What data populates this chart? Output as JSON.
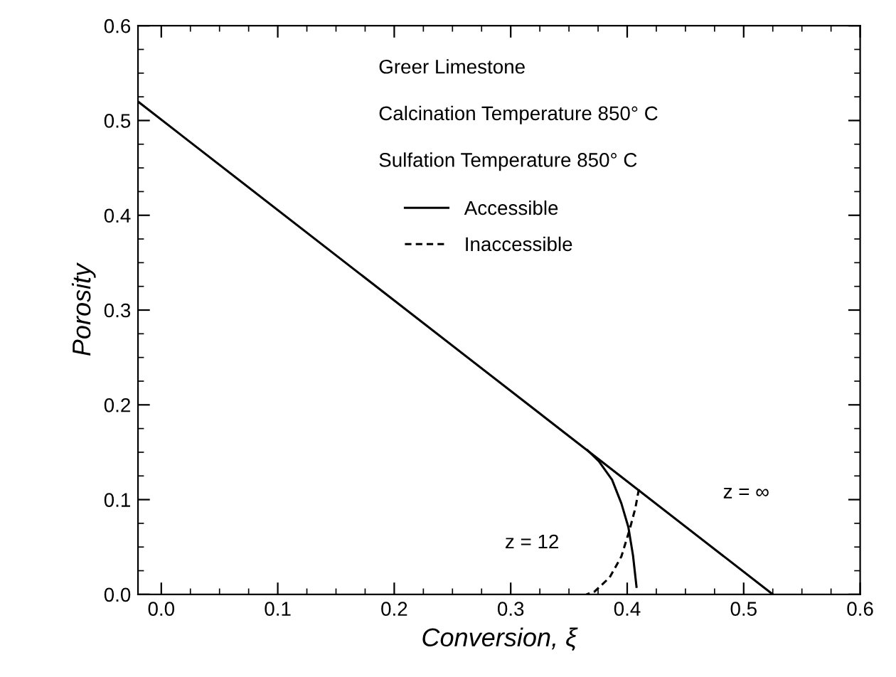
{
  "chart_data": {
    "type": "line",
    "xlabel": "Conversion, ξ",
    "ylabel": "Porosity",
    "annotations": [
      "Greer Limestone",
      "Calcination Temperature 850° C",
      "Sulfation Temperature 850° C",
      "z = 12",
      "z = ∞"
    ],
    "series": [
      {
        "name": "Accessible",
        "color": "#000000",
        "line_style": "solid",
        "x": [
          -0.02,
          0.525
        ],
        "values": [
          0.52,
          0.0
        ]
      },
      {
        "color": "#000000",
        "line_style": "solid",
        "x": [
          0.366,
          0.376,
          0.387,
          0.395,
          0.401,
          0.405,
          0.408
        ],
        "values": [
          0.152,
          0.14,
          0.121,
          0.096,
          0.071,
          0.041,
          0.008
        ]
      },
      {
        "name": "Inaccessible",
        "color": "#000000",
        "line_style": "dashed",
        "x": [
          0.41,
          0.407,
          0.402,
          0.395,
          0.385,
          0.372,
          0.365
        ],
        "values": [
          0.111,
          0.091,
          0.068,
          0.04,
          0.018,
          0.003,
          0.0
        ]
      }
    ],
    "xlim": [
      -0.02,
      0.6
    ],
    "ylim": [
      0.0,
      0.6
    ],
    "xticks": [
      {
        "value": 0.0,
        "label": "0.0"
      },
      0.1,
      0.2,
      0.3,
      0.4,
      0.5,
      0.6
    ],
    "yticks": [
      {
        "value": 0.0,
        "label": "0.0"
      },
      0.1,
      0.2,
      0.3,
      0.4,
      0.5,
      0.6
    ],
    "grid": false,
    "legend": "top",
    "marker": "none"
  }
}
